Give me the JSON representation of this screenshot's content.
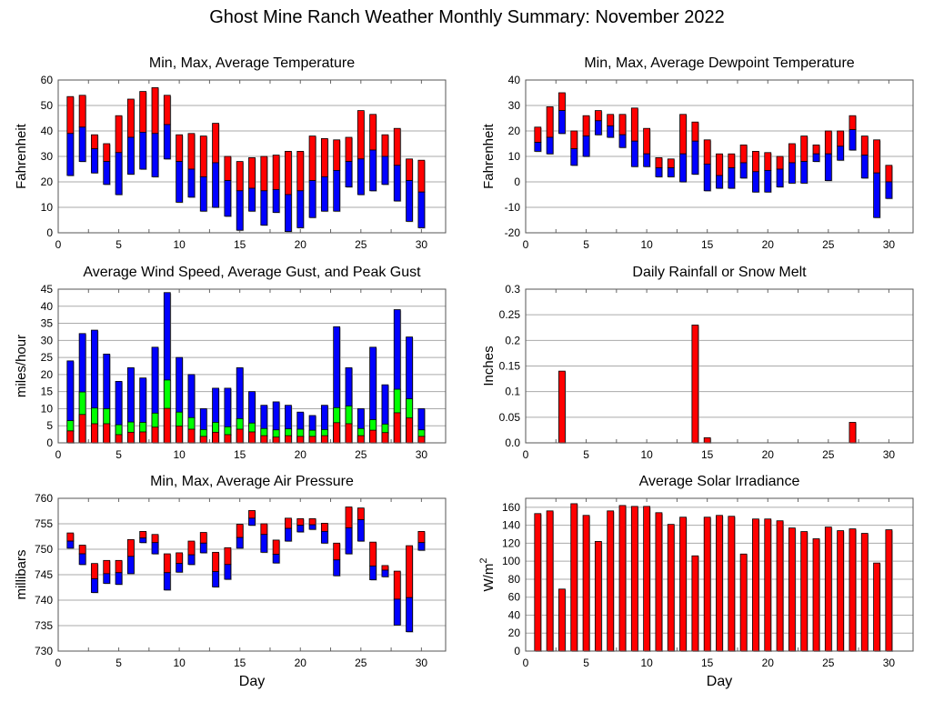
{
  "page_title": "Ghost Mine Ranch Weather Monthly Summary: November 2022",
  "colors": {
    "max": "#ff0000",
    "avg_blue": "#0000ff",
    "green": "#00ff00",
    "grid": "#aaaaaa"
  },
  "chart_data": [
    {
      "id": "temperature",
      "type": "bar",
      "subtype": "floating-range",
      "title": "Min, Max, Average Temperature",
      "xlabel": "",
      "ylabel": "Fahrenheit",
      "xlim": [
        0,
        32
      ],
      "ylim": [
        0,
        60
      ],
      "xticks": [
        0,
        5,
        10,
        15,
        20,
        25,
        30
      ],
      "yticks": [
        0,
        10,
        20,
        30,
        40,
        50,
        60
      ],
      "x": [
        1,
        2,
        3,
        4,
        5,
        6,
        7,
        8,
        9,
        10,
        11,
        12,
        13,
        14,
        15,
        16,
        17,
        18,
        19,
        20,
        21,
        22,
        23,
        24,
        25,
        26,
        27,
        28,
        29,
        30
      ],
      "series": [
        {
          "name": "Min",
          "values": [
            22.5,
            28,
            23.5,
            19,
            15,
            23,
            25,
            22,
            29,
            12,
            14,
            8.5,
            10,
            6.5,
            1,
            8.5,
            3,
            8,
            0.5,
            2,
            6,
            8.5,
            8.5,
            18,
            15,
            16.5,
            19,
            12.5,
            4.5,
            2
          ]
        },
        {
          "name": "Average",
          "values": [
            39,
            41.5,
            33,
            28,
            31.5,
            37.5,
            39.5,
            39,
            42.5,
            28,
            25,
            22,
            27.5,
            20.5,
            16.5,
            17.5,
            16.5,
            17,
            15,
            16.5,
            20.5,
            22,
            24.5,
            28,
            29,
            32.5,
            30,
            26.5,
            20.5,
            16
          ]
        },
        {
          "name": "Max",
          "values": [
            53.5,
            54,
            38.5,
            35,
            46,
            52.5,
            55.5,
            57,
            54,
            38.5,
            39,
            38,
            43,
            30,
            28,
            29.5,
            30,
            30.5,
            32,
            32,
            38,
            37,
            36.5,
            37.5,
            48,
            46.5,
            38.5,
            41,
            29,
            28.5
          ]
        }
      ]
    },
    {
      "id": "dewpoint",
      "type": "bar",
      "subtype": "floating-range",
      "title": "Min, Max, Average Dewpoint Temperature",
      "xlabel": "",
      "ylabel": "Fahrenheit",
      "xlim": [
        0,
        32
      ],
      "ylim": [
        -20,
        40
      ],
      "xticks": [
        0,
        5,
        10,
        15,
        20,
        25,
        30
      ],
      "yticks": [
        -20,
        -10,
        0,
        10,
        20,
        30,
        40
      ],
      "x": [
        1,
        2,
        3,
        4,
        5,
        6,
        7,
        8,
        9,
        10,
        11,
        12,
        13,
        14,
        15,
        16,
        17,
        18,
        19,
        20,
        21,
        22,
        23,
        24,
        25,
        26,
        27,
        28,
        29,
        30
      ],
      "series": [
        {
          "name": "Min",
          "values": [
            12,
            11,
            19,
            6.5,
            10,
            18.5,
            17.5,
            13.5,
            6,
            6,
            2,
            2,
            0,
            3,
            -3.5,
            -2.5,
            -2.5,
            1.5,
            -4,
            -4,
            -2,
            -0.5,
            -0.5,
            8,
            0.5,
            8.5,
            12.5,
            1.5,
            -14,
            -6.5
          ]
        },
        {
          "name": "Average",
          "values": [
            15.5,
            17.5,
            28,
            13,
            18,
            24,
            22,
            18.5,
            16,
            11,
            5.5,
            5.5,
            11,
            16,
            7,
            2.5,
            5.5,
            7.5,
            4,
            4.5,
            5,
            7.5,
            8,
            11,
            11,
            14,
            20.5,
            10.5,
            3.5,
            0
          ]
        },
        {
          "name": "Max",
          "values": [
            21.5,
            29.5,
            35,
            20,
            26,
            28,
            26.5,
            26.5,
            29,
            21,
            9.5,
            9,
            26.5,
            23.5,
            16.5,
            11,
            11,
            14.5,
            12,
            11.5,
            10,
            15,
            18,
            14.5,
            20,
            20,
            26,
            18,
            16.5,
            6.5
          ]
        }
      ]
    },
    {
      "id": "wind",
      "type": "bar",
      "subtype": "overlaid",
      "title": "Average Wind Speed, Average Gust, and Peak Gust",
      "xlabel": "",
      "ylabel": "miles/hour",
      "xlim": [
        0,
        32
      ],
      "ylim": [
        0,
        45
      ],
      "xticks": [
        0,
        5,
        10,
        15,
        20,
        25,
        30
      ],
      "yticks": [
        0,
        5,
        10,
        15,
        20,
        25,
        30,
        35,
        40,
        45
      ],
      "x": [
        1,
        2,
        3,
        4,
        5,
        6,
        7,
        8,
        9,
        10,
        11,
        12,
        13,
        14,
        15,
        16,
        17,
        18,
        19,
        20,
        21,
        22,
        23,
        24,
        25,
        26,
        27,
        28,
        29,
        30
      ],
      "series": [
        {
          "name": "Average Wind Speed",
          "color": "#ff0000",
          "values": [
            3.5,
            8.3,
            5.6,
            5.6,
            2.4,
            3.1,
            3.2,
            4.6,
            10.1,
            4.9,
            4,
            1.9,
            3.1,
            2.4,
            4,
            3.2,
            2.1,
            1.7,
            2.1,
            1.9,
            1.9,
            2.1,
            5.9,
            5.6,
            2.1,
            3.7,
            3,
            8.8,
            7.3,
            1.9
          ]
        },
        {
          "name": "Average Gust",
          "color": "#00ff00",
          "values": [
            6.5,
            14.9,
            10.2,
            10,
            5.3,
            6.1,
            6,
            8.7,
            18.4,
            9,
            7.4,
            3.9,
            6,
            4.7,
            7.1,
            5.8,
            4.2,
            3.8,
            4.1,
            4,
            3.7,
            3.9,
            10.3,
            10.8,
            4.2,
            6.8,
            5.5,
            15.7,
            12.9,
            3.8
          ]
        },
        {
          "name": "Peak Gust",
          "color": "#0000ff",
          "values": [
            24,
            32,
            33,
            26,
            18,
            22,
            19,
            28,
            44,
            25,
            20,
            10,
            16,
            16,
            22,
            15,
            11,
            12,
            11,
            9,
            8,
            11,
            34,
            22,
            10,
            28,
            17,
            39,
            31,
            10
          ]
        }
      ]
    },
    {
      "id": "rainfall",
      "type": "bar",
      "title": "Daily Rainfall or Snow Melt",
      "xlabel": "",
      "ylabel": "Inches",
      "xlim": [
        0,
        32
      ],
      "ylim": [
        0,
        0.3
      ],
      "xticks": [
        0,
        5,
        10,
        15,
        20,
        25,
        30
      ],
      "yticks": [
        "0.0",
        "0.05",
        "0.1",
        "0.15",
        "0.2",
        "0.25",
        "0.3"
      ],
      "x": [
        3,
        14,
        15,
        27
      ],
      "values": [
        0.14,
        0.23,
        0.01,
        0.04
      ]
    },
    {
      "id": "pressure",
      "type": "bar",
      "subtype": "floating-range",
      "title": "Min, Max, Average Air Pressure",
      "xlabel": "Day",
      "ylabel": "millibars",
      "xlim": [
        0,
        32
      ],
      "ylim": [
        730,
        760
      ],
      "xticks": [
        0,
        5,
        10,
        15,
        20,
        25,
        30
      ],
      "yticks": [
        730,
        735,
        740,
        745,
        750,
        755,
        760
      ],
      "x": [
        1,
        2,
        3,
        4,
        5,
        6,
        7,
        8,
        9,
        10,
        11,
        12,
        13,
        14,
        15,
        16,
        17,
        18,
        19,
        20,
        21,
        22,
        23,
        24,
        25,
        26,
        27,
        28,
        29,
        30
      ],
      "series": [
        {
          "name": "Min",
          "values": [
            750.2,
            747,
            741.5,
            743.3,
            743.1,
            745.2,
            751.3,
            749.1,
            742,
            745.5,
            747,
            749.3,
            742.6,
            744.1,
            750.2,
            754.7,
            749.4,
            747.3,
            751.6,
            753.4,
            753.9,
            751.2,
            744.8,
            749.1,
            751.6,
            744,
            744.6,
            735.1,
            733.8,
            749.8
          ]
        },
        {
          "name": "Average",
          "values": [
            751.6,
            749.1,
            744.2,
            745.2,
            745.4,
            748.6,
            752.2,
            751.3,
            745.4,
            747.2,
            748.9,
            751.2,
            745.6,
            747,
            752.3,
            756.1,
            752.9,
            749,
            754.1,
            754.7,
            754.8,
            753.5,
            747.9,
            754.2,
            755.8,
            746.7,
            745.9,
            740.2,
            740.5,
            751.3
          ]
        },
        {
          "name": "Max",
          "values": [
            753.2,
            750.8,
            747.2,
            747.8,
            747.8,
            751.9,
            753.5,
            752.9,
            749.1,
            749.3,
            751.6,
            753.3,
            749.4,
            750.3,
            754.9,
            757.6,
            755,
            751.8,
            756.1,
            756,
            756,
            755.1,
            751.2,
            758.3,
            758.1,
            751.4,
            746.8,
            745.7,
            750.7,
            753.5
          ]
        }
      ]
    },
    {
      "id": "solar",
      "type": "bar",
      "title": "Average Solar Irradiance",
      "xlabel": "Day",
      "ylabel": "W/m",
      "ylabel_superscript": "2",
      "xlim": [
        0,
        32
      ],
      "ylim": [
        0,
        170
      ],
      "xticks": [
        0,
        5,
        10,
        15,
        20,
        25,
        30
      ],
      "yticks": [
        0,
        20,
        40,
        60,
        80,
        100,
        120,
        140,
        160
      ],
      "x": [
        1,
        2,
        3,
        4,
        5,
        6,
        7,
        8,
        9,
        10,
        11,
        12,
        13,
        14,
        15,
        16,
        17,
        18,
        19,
        20,
        21,
        22,
        23,
        24,
        25,
        26,
        27,
        28,
        29,
        30
      ],
      "values": [
        153,
        156,
        69,
        164,
        151,
        122,
        156,
        162,
        161,
        161,
        154,
        141,
        149,
        106,
        149,
        151,
        150,
        108,
        147,
        147,
        145,
        137,
        133,
        125,
        138,
        134,
        136,
        131,
        98,
        135
      ]
    }
  ]
}
